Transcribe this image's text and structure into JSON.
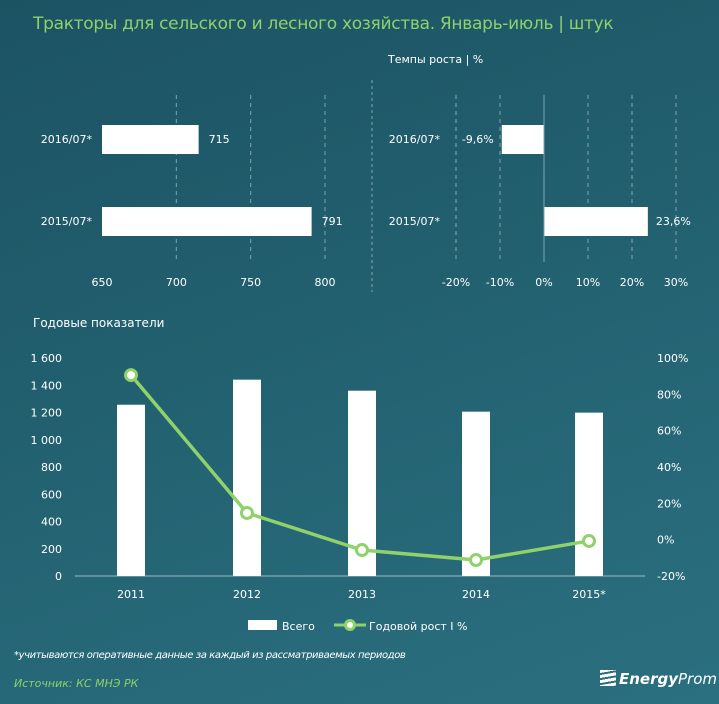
{
  "title": "Тракторы для сельского и лесного хозяйства. Январь-июль | штук",
  "footnote": "*учитываются оперативные данные за каждый из рассматриваемых периодов",
  "source": "Источник: КС МНЭ РК",
  "logo": {
    "bold": "Energy",
    "light": "Prom"
  },
  "colors": {
    "bar": "#ffffff",
    "line": "#8fd16b",
    "title": "#8fd16b"
  },
  "chart_data": [
    {
      "type": "bar",
      "orientation": "horizontal",
      "title": "",
      "categories": [
        "2016/07*",
        "2015/07*"
      ],
      "values": [
        715,
        791
      ],
      "value_labels": [
        "715",
        "791"
      ],
      "xlim": [
        650,
        800
      ],
      "xticks": [
        "650",
        "700",
        "750",
        "800"
      ],
      "grid": true
    },
    {
      "type": "bar",
      "orientation": "horizontal",
      "title": "Темпы роста | %",
      "categories": [
        "2016/07*",
        "2015/07*"
      ],
      "values": [
        -9.6,
        23.6
      ],
      "value_labels": [
        "-9,6%",
        "23,6%"
      ],
      "xlim": [
        -20,
        30
      ],
      "xticks": [
        "-20%",
        "-10%",
        "0%",
        "10%",
        "20%",
        "30%"
      ],
      "grid": true
    },
    {
      "type": "bar+line",
      "title": "Годовые показатели",
      "categories": [
        "2011",
        "2012",
        "2013",
        "2014",
        "2015*"
      ],
      "series": [
        {
          "name": "Всего",
          "type": "bar",
          "axis": "left",
          "values": [
            1257,
            1441,
            1360,
            1206,
            1199
          ]
        },
        {
          "name": "Годовой рост I %",
          "type": "line",
          "axis": "right",
          "values": [
            90.6,
            14.7,
            -5.7,
            -11.2,
            -0.7
          ]
        }
      ],
      "ylim_left": [
        0,
        1600
      ],
      "yticks_left": [
        "0",
        "200",
        "400",
        "600",
        "800",
        "1 000",
        "1 200",
        "1 400",
        "1 600"
      ],
      "ylim_right": [
        -20,
        100
      ],
      "yticks_right": [
        "-20%",
        "0%",
        "20%",
        "40%",
        "60%",
        "80%",
        "100%"
      ],
      "legend": "bottom"
    }
  ]
}
